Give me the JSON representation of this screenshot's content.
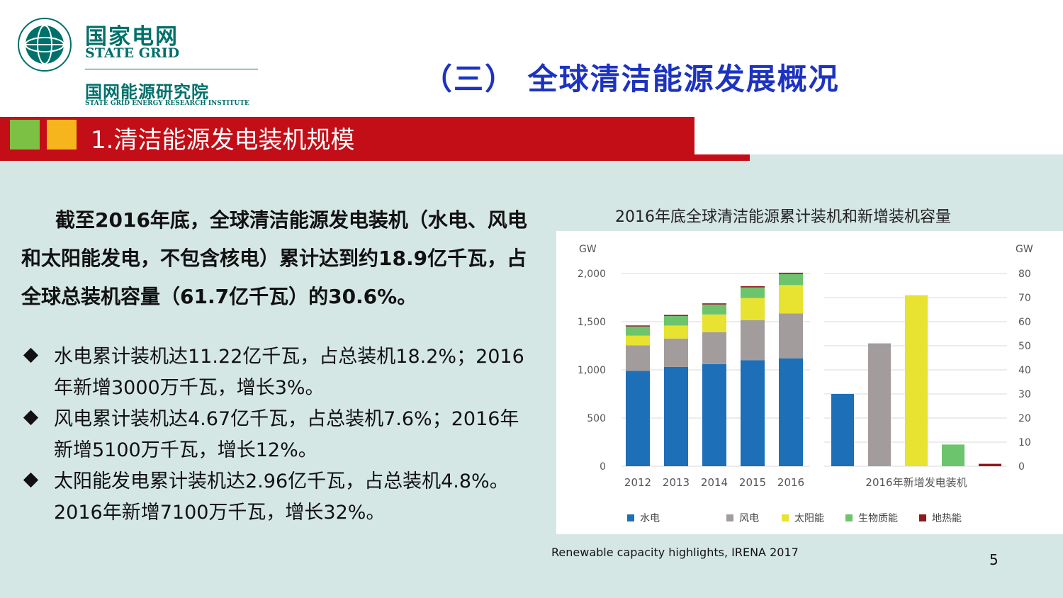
{
  "header": {
    "logo_cn": "国家电网",
    "logo_en": "STATE GRID",
    "institute_cn": "国网能源研究院",
    "institute_en": "STATE GRID ENERGY RESEARCH INSTITUTE",
    "title": "（三） 全球清洁能源发展概况"
  },
  "section": {
    "title": "1.清洁能源发电装机规模"
  },
  "body": {
    "lead": "截至2016年底，全球清洁能源发电装机（水电、风电和太阳能发电，不包含核电）累计达到约18.9亿千瓦，占全球总装机容量（61.7亿千瓦）的30.6%。",
    "bullets": [
      "水电累计装机达11.22亿千瓦，占总装机18.2%；2016年新增3000万千瓦，增长3%。",
      "风电累计装机达4.67亿千瓦，占总装机7.6%；2016年新增5100万千瓦，增长12%。",
      "太阳能发电累计装机达2.96亿千瓦，占总装机4.8%。2016年新增7100万千瓦，增长32%。"
    ]
  },
  "colors": {
    "teal": "#00706b",
    "title_blue": "#1d33c0",
    "band_red": "#c30d17",
    "content_bg": "#d5e7e5"
  },
  "chart_data": [
    {
      "type": "bar",
      "stacked": true,
      "title": "2016年底全球清洁能源累计装机和新增装机容量",
      "ylabel": "GW",
      "ylim": [
        0,
        2000
      ],
      "yticks": [
        "0",
        "500",
        "1,000",
        "1,500",
        "2,000"
      ],
      "categories": [
        "2012",
        "2013",
        "2014",
        "2015",
        "2016"
      ],
      "series": [
        {
          "name": "水电",
          "color": "#1d6fb8",
          "values": [
            990,
            1030,
            1060,
            1100,
            1120
          ]
        },
        {
          "name": "风电",
          "color": "#a39c9d",
          "values": [
            265,
            295,
            330,
            415,
            465
          ]
        },
        {
          "name": "太阳能",
          "color": "#e8e231",
          "values": [
            100,
            135,
            185,
            230,
            295
          ]
        },
        {
          "name": "生物质能",
          "color": "#6cc46c",
          "values": [
            95,
            98,
            103,
            110,
            115
          ]
        },
        {
          "name": "地热能",
          "color": "#8f1a1d",
          "values": [
            11,
            12,
            12,
            13,
            13
          ]
        }
      ],
      "grid": true
    },
    {
      "type": "bar",
      "ylabel": "GW",
      "ylim": [
        0,
        80
      ],
      "yticks": [
        "0",
        "10",
        "20",
        "30",
        "40",
        "50",
        "60",
        "70",
        "80"
      ],
      "xlabel": "2016年新增发电装机",
      "series": [
        {
          "name": "水电",
          "color": "#1d6fb8",
          "value": 30
        },
        {
          "name": "风电",
          "color": "#a39c9d",
          "value": 51
        },
        {
          "name": "太阳能",
          "color": "#e8e231",
          "value": 71
        },
        {
          "name": "生物质能",
          "color": "#6cc46c",
          "value": 9
        },
        {
          "name": "地热能",
          "color": "#8f1a1d",
          "value": 1
        }
      ],
      "grid": true
    }
  ],
  "legend": [
    "水电",
    "风电",
    "太阳能",
    "生物质能",
    "地热能"
  ],
  "source": "Renewable capacity highlights, IRENA 2017",
  "page_number": "5"
}
